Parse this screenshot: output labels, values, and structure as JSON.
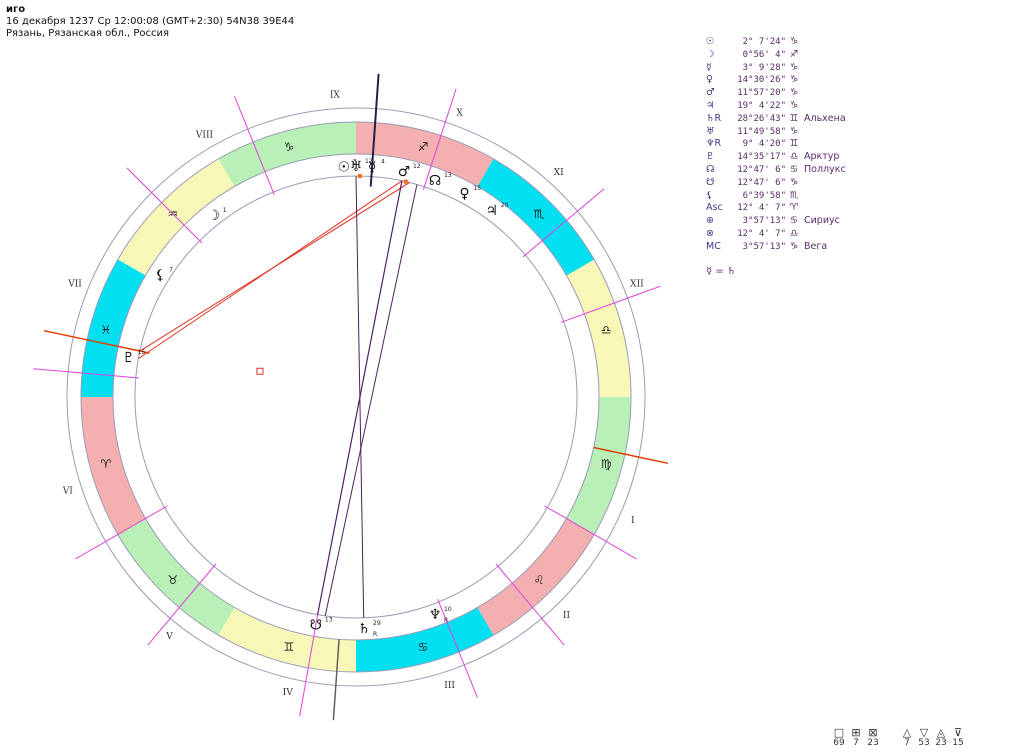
{
  "header": {
    "name": "иго",
    "datetime": "16 декабря 1237  Ср  12:00:08 (GMT+2:30) 54N38  39E44",
    "place": "Рязань, Рязанская обл., Россия"
  },
  "wheel": {
    "house_labels": [
      "IX",
      "X",
      "XI",
      "XII",
      "I",
      "II",
      "III",
      "IV",
      "V",
      "VI",
      "VII",
      "VIII"
    ],
    "signs": [
      {
        "glyph": "♐",
        "color": "#f4b0b0"
      },
      {
        "glyph": "♑",
        "color": "#b8f0b8"
      },
      {
        "glyph": "♒",
        "color": "#f7f7b8"
      },
      {
        "glyph": "♓",
        "color": "#00e0f0"
      },
      {
        "glyph": "♈",
        "color": "#f4b0b0"
      },
      {
        "glyph": "♉",
        "color": "#b8f0b8"
      },
      {
        "glyph": "♊",
        "color": "#f7f7b8"
      },
      {
        "glyph": "♋",
        "color": "#00e0f0"
      },
      {
        "glyph": "♌",
        "color": "#f4b0b0"
      },
      {
        "glyph": "♍",
        "color": "#b8f0b8"
      },
      {
        "glyph": "♎",
        "color": "#f7f7b8"
      },
      {
        "glyph": "♏",
        "color": "#00e0f0"
      }
    ],
    "planets": [
      {
        "glyph": "☉",
        "deg": "3"
      },
      {
        "glyph": "♅",
        "deg": "12"
      },
      {
        "glyph": "☿",
        "deg": "4"
      },
      {
        "glyph": "♂",
        "deg": "12"
      },
      {
        "glyph": "☊",
        "deg": "13"
      },
      {
        "glyph": "♀",
        "deg": "15"
      },
      {
        "glyph": "♃",
        "deg": "20"
      },
      {
        "glyph": "☽",
        "deg": "1"
      },
      {
        "glyph": "⚸",
        "deg": "7"
      },
      {
        "glyph": "♇",
        "deg": "15"
      },
      {
        "glyph": "☋",
        "deg": "13"
      },
      {
        "glyph": "♄",
        "deg": "29",
        "retro": "R"
      },
      {
        "glyph": "♆",
        "deg": "10",
        "retro": "R"
      }
    ]
  },
  "positions": [
    {
      "glyph": "☉",
      "value": "2° 7'24\"",
      "sign": "♑",
      "star": ""
    },
    {
      "glyph": "☽",
      "value": "0°56' 4\"",
      "sign": "♐",
      "star": ""
    },
    {
      "glyph": "☿",
      "value": "3° 9'28\"",
      "sign": "♑",
      "star": ""
    },
    {
      "glyph": "♀",
      "value": "14°30'26\"",
      "sign": "♑",
      "star": ""
    },
    {
      "glyph": "♂",
      "value": "11°57'20\"",
      "sign": "♑",
      "star": ""
    },
    {
      "glyph": "♃",
      "value": "19° 4'22\"",
      "sign": "♑",
      "star": ""
    },
    {
      "glyph": "♄R",
      "value": "28°26'43\"",
      "sign": "♊",
      "star": "Альхена"
    },
    {
      "glyph": "♅",
      "value": "11°49'58\"",
      "sign": "♑",
      "star": ""
    },
    {
      "glyph": "♆R",
      "value": "9° 4'20\"",
      "sign": "♊",
      "star": ""
    },
    {
      "glyph": "♇",
      "value": "14°35'17\"",
      "sign": "♎",
      "star": "Арктур"
    },
    {
      "glyph": "☊",
      "value": "12°47' 6\"",
      "sign": "♋",
      "star": "Поллукс"
    },
    {
      "glyph": "☋",
      "value": "12°47' 6\"",
      "sign": "♑",
      "star": ""
    },
    {
      "glyph": "⚸",
      "value": "6°39'58\"",
      "sign": "♏",
      "star": ""
    },
    {
      "glyph": "Asc",
      "value": "12° 4' 7\"",
      "sign": "♈",
      "star": ""
    },
    {
      "glyph": "⊕",
      "value": "3°57'13\"",
      "sign": "♋",
      "star": "Сириус"
    },
    {
      "glyph": "⊗",
      "value": "12° 4' 7\"",
      "sign": "♎",
      "star": ""
    },
    {
      "glyph": "MC",
      "value": "3°57'13\"",
      "sign": "♑",
      "star": "Вега"
    }
  ],
  "aspect_note": "☿ = ♄",
  "stats": [
    {
      "icon": "□",
      "value": "69"
    },
    {
      "icon": "⊞",
      "value": "7"
    },
    {
      "icon": "⊠",
      "value": "23"
    },
    {
      "icon": "△",
      "value": "7"
    },
    {
      "icon": "▽",
      "value": "53"
    },
    {
      "icon": "◬",
      "value": "23"
    },
    {
      "icon": "⊽",
      "value": "15"
    }
  ],
  "colors": {
    "ring_line": "#9a9ab8",
    "house_cusp": "#e040e0",
    "axis_asc": "#e04000",
    "aspect_red": "#e03020",
    "aspect_purple": "#502060"
  }
}
